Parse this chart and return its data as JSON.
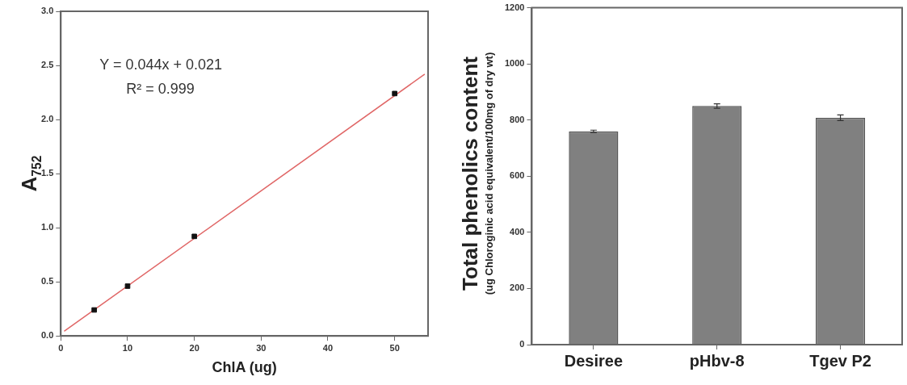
{
  "chart_data": [
    {
      "type": "scatter",
      "xlabel": "ChlA (ug)",
      "ylabel": "A$_{752}$",
      "xlim": [
        0,
        55
      ],
      "xticks": [
        0,
        10,
        20,
        30,
        40,
        50
      ],
      "ylim": [
        0,
        3
      ],
      "yticks": [
        {
          "value": 0,
          "label": "0.0"
        },
        {
          "value": 0.5,
          "label": "0.5"
        },
        {
          "value": 1,
          "label": "1.0"
        },
        {
          "value": 1.5,
          "label": "1.5"
        },
        {
          "value": 2,
          "label": "2.0"
        },
        {
          "value": 2.5,
          "label": "2.5"
        },
        {
          "value": 3,
          "label": "3.0"
        }
      ],
      "grid": false,
      "legend": false,
      "annotations": [
        "Y = 0.044x + 0.021",
        "R² = 0.999"
      ],
      "series": [
        {
          "type": "scatter",
          "marker": "square",
          "color": "#111111",
          "x": [
            5,
            10,
            20,
            50
          ],
          "values": [
            0.24,
            0.46,
            0.92,
            2.24
          ]
        },
        {
          "type": "line",
          "color": "#e06666",
          "x": [
            0.5,
            54.5
          ],
          "values": [
            0.043,
            2.419
          ]
        }
      ]
    },
    {
      "type": "bar",
      "ylabel": "Total phenolics content\n(ug Chloroginic acid equivalent/100mg of dry wt)",
      "categories": [
        "Desiree",
        "pHbv-8",
        "Tgev P2"
      ],
      "ylim": [
        0,
        1200
      ],
      "yticks": [
        0,
        200,
        400,
        600,
        800,
        1000,
        1200
      ],
      "grid": false,
      "legend": false,
      "series": [
        {
          "color": "#808080",
          "values": [
            760,
            850,
            808
          ],
          "errors": [
            4,
            8,
            10
          ]
        }
      ]
    }
  ]
}
